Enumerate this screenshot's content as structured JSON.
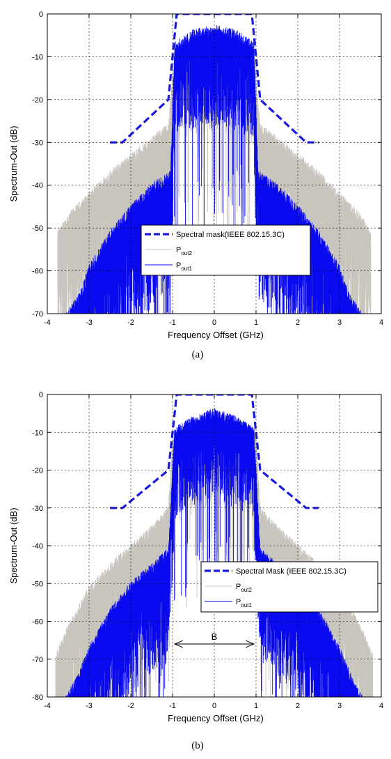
{
  "chart_data": [
    {
      "type": "line",
      "caption": "(a)",
      "xlabel": "Frequency Offset (GHz)",
      "ylabel": "Spectrum-Out (dB)",
      "xlim": [
        -4,
        4
      ],
      "ylim": [
        -70,
        0
      ],
      "xticks": [
        -4,
        -3,
        -2,
        -1,
        0,
        1,
        2,
        3,
        4
      ],
      "yticks": [
        0,
        -10,
        -20,
        -30,
        -40,
        -50,
        -60,
        -70
      ],
      "grid": true,
      "legend_position": "center-right",
      "legend": [
        {
          "key": "mask",
          "label": "Spectral mask(IEEE 802.15.3C)",
          "sub": ""
        },
        {
          "key": "p2",
          "label": "P",
          "sub": "out2"
        },
        {
          "key": "p1",
          "label": "P",
          "sub": "out1"
        }
      ],
      "series": [
        {
          "key": "mask",
          "name": "Spectral mask(IEEE 802.15.3C)",
          "color": "#1a1adf",
          "style": "dashed",
          "x": [
            -2.5,
            -2.2,
            -1.1,
            -1.0,
            -0.9,
            0.9,
            1.0,
            1.1,
            2.2,
            2.5
          ],
          "y": [
            -30,
            -30,
            -20,
            -10,
            0,
            0,
            -10,
            -20,
            -30,
            -30
          ]
        },
        {
          "key": "p2",
          "name": "Pout2",
          "color": "#c8c4be",
          "style": "noise",
          "x": [
            -3.75,
            -3.5,
            -3.0,
            -2.5,
            -2.0,
            -1.5,
            -1.1,
            -0.95,
            -0.5,
            0.0,
            0.5,
            0.95,
            1.1,
            1.5,
            2.0,
            2.5,
            3.0,
            3.5,
            3.75
          ],
          "y": [
            -52,
            -48,
            -43,
            -38,
            -34,
            -30,
            -27,
            -9,
            -6,
            -5,
            -6,
            -9,
            -27,
            -30,
            -34,
            -38,
            -43,
            -48,
            -52
          ]
        },
        {
          "key": "p1",
          "name": "Pout1",
          "color": "#0a0af0",
          "style": "noise",
          "x": [
            -3.6,
            -3.2,
            -3.0,
            -2.5,
            -2.0,
            -1.5,
            -1.05,
            -0.95,
            -0.5,
            0.0,
            0.5,
            0.95,
            1.05,
            1.5,
            2.0,
            2.5,
            3.0,
            3.2,
            3.6
          ],
          "y": [
            -72,
            -66,
            -60,
            -52,
            -46,
            -41,
            -38,
            -8,
            -5,
            -4,
            -5,
            -8,
            -38,
            -41,
            -46,
            -52,
            -60,
            -66,
            -72
          ]
        }
      ]
    },
    {
      "type": "line",
      "caption": "(b)",
      "xlabel": "Frequency Offset (GHz)",
      "ylabel": "Spectrum-Out (dB)",
      "xlim": [
        -4,
        4
      ],
      "ylim": [
        -80,
        0
      ],
      "xticks": [
        -4,
        -3,
        -2,
        -1,
        0,
        1,
        2,
        3,
        4
      ],
      "yticks": [
        0,
        -10,
        -20,
        -30,
        -40,
        -50,
        -60,
        -70,
        -80
      ],
      "grid": true,
      "legend_position": "center-right",
      "legend": [
        {
          "key": "mask",
          "label": "Spectral Mask (IEEE 802.15.3C)",
          "sub": ""
        },
        {
          "key": "p2",
          "label": "P",
          "sub": "out2"
        },
        {
          "key": "p1",
          "label": "P",
          "sub": "out1"
        }
      ],
      "annotation": {
        "text": "B",
        "x1": -0.95,
        "x2": 0.95,
        "y": -66
      },
      "series": [
        {
          "key": "mask",
          "name": "Spectral Mask (IEEE 802.15.3C)",
          "color": "#1a1adf",
          "style": "dashed",
          "x": [
            -2.5,
            -2.2,
            -1.1,
            -1.0,
            -0.9,
            0.9,
            1.0,
            1.1,
            2.2,
            2.5
          ],
          "y": [
            -30,
            -30,
            -20,
            -10,
            0,
            0,
            -10,
            -20,
            -30,
            -30
          ]
        },
        {
          "key": "p2",
          "name": "Pout2",
          "color": "#c8c4be",
          "style": "noise",
          "x": [
            -3.8,
            -3.5,
            -3.0,
            -2.5,
            -2.0,
            -1.5,
            -1.1,
            -1.0,
            -0.5,
            0.0,
            0.5,
            1.0,
            1.1,
            1.5,
            2.0,
            2.5,
            3.0,
            3.5,
            3.8
          ],
          "y": [
            -70,
            -62,
            -52,
            -46,
            -41,
            -36,
            -31,
            -12,
            -8,
            -6,
            -8,
            -12,
            -31,
            -36,
            -41,
            -46,
            -52,
            -62,
            -70
          ]
        },
        {
          "key": "p1",
          "name": "Pout1",
          "color": "#0a0af0",
          "style": "noise",
          "x": [
            -3.6,
            -3.3,
            -3.0,
            -2.5,
            -2.0,
            -1.5,
            -1.1,
            -0.95,
            -0.5,
            0.0,
            0.5,
            0.95,
            1.1,
            1.5,
            2.0,
            2.5,
            3.0,
            3.3,
            3.6
          ],
          "y": [
            -82,
            -76,
            -68,
            -58,
            -51,
            -46,
            -42,
            -10,
            -7,
            -5,
            -7,
            -10,
            -42,
            -46,
            -51,
            -58,
            -68,
            -76,
            -82
          ]
        }
      ]
    }
  ]
}
